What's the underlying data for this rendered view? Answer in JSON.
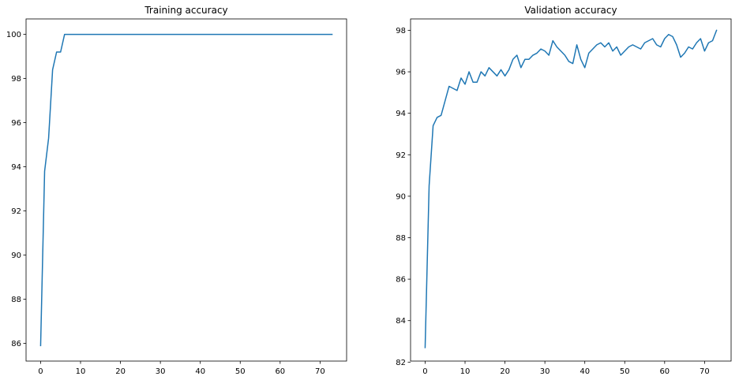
{
  "colors": {
    "series": "#1f77b4",
    "axes": "#000000",
    "background": "#ffffff"
  },
  "chart_data": [
    {
      "type": "line",
      "title": "Training accuracy",
      "xlabel": "",
      "ylabel": "",
      "xlim": [
        -3.65,
        76.65
      ],
      "ylim": [
        85.2,
        100.7
      ],
      "grid": false,
      "xticks": [
        0,
        10,
        20,
        30,
        40,
        50,
        60,
        70
      ],
      "yticks": [
        86,
        88,
        90,
        92,
        94,
        96,
        98,
        100
      ],
      "series": [
        {
          "x": [
            0,
            1,
            2,
            3,
            4,
            5,
            6,
            7,
            8,
            9,
            10,
            11,
            12,
            13,
            14,
            15,
            16,
            17,
            18,
            19,
            20,
            21,
            22,
            23,
            24,
            25,
            26,
            27,
            28,
            29,
            30,
            31,
            32,
            33,
            34,
            35,
            36,
            37,
            38,
            39,
            40,
            41,
            42,
            43,
            44,
            45,
            46,
            47,
            48,
            49,
            50,
            51,
            52,
            53,
            54,
            55,
            56,
            57,
            58,
            59,
            60,
            61,
            62,
            63,
            64,
            65,
            66,
            67,
            68,
            69,
            70,
            71,
            72,
            73
          ],
          "y": [
            85.9,
            93.8,
            95.3,
            98.4,
            99.2,
            99.2,
            100,
            100,
            100,
            100,
            100,
            100,
            100,
            100,
            100,
            100,
            100,
            100,
            100,
            100,
            100,
            100,
            100,
            100,
            100,
            100,
            100,
            100,
            100,
            100,
            100,
            100,
            100,
            100,
            100,
            100,
            100,
            100,
            100,
            100,
            100,
            100,
            100,
            100,
            100,
            100,
            100,
            100,
            100,
            100,
            100,
            100,
            100,
            100,
            100,
            100,
            100,
            100,
            100,
            100,
            100,
            100,
            100,
            100,
            100,
            100,
            100,
            100,
            100,
            100,
            100,
            100,
            100,
            100
          ]
        }
      ]
    },
    {
      "type": "line",
      "title": "Validation accuracy",
      "xlabel": "",
      "ylabel": "",
      "xlim": [
        -3.65,
        76.65
      ],
      "ylim": [
        82.05,
        98.55
      ],
      "grid": false,
      "xticks": [
        0,
        10,
        20,
        30,
        40,
        50,
        60,
        70
      ],
      "yticks": [
        82,
        84,
        86,
        88,
        90,
        92,
        94,
        96,
        98
      ],
      "series": [
        {
          "x": [
            0,
            1,
            2,
            3,
            4,
            5,
            6,
            7,
            8,
            9,
            10,
            11,
            12,
            13,
            14,
            15,
            16,
            17,
            18,
            19,
            20,
            21,
            22,
            23,
            24,
            25,
            26,
            27,
            28,
            29,
            30,
            31,
            32,
            33,
            34,
            35,
            36,
            37,
            38,
            39,
            40,
            41,
            42,
            43,
            44,
            45,
            46,
            47,
            48,
            49,
            50,
            51,
            52,
            53,
            54,
            55,
            56,
            57,
            58,
            59,
            60,
            61,
            62,
            63,
            64,
            65,
            66,
            67,
            68,
            69,
            70,
            71,
            72,
            73
          ],
          "y": [
            82.7,
            90.5,
            93.4,
            93.8,
            93.9,
            94.6,
            95.3,
            95.2,
            95.1,
            95.7,
            95.4,
            96.0,
            95.5,
            95.5,
            96.0,
            95.8,
            96.2,
            96.0,
            95.8,
            96.1,
            95.8,
            96.1,
            96.6,
            96.8,
            96.2,
            96.6,
            96.6,
            96.8,
            96.9,
            97.1,
            97.0,
            96.8,
            97.5,
            97.2,
            97.0,
            96.8,
            96.5,
            96.4,
            97.3,
            96.6,
            96.2,
            96.9,
            97.1,
            97.3,
            97.4,
            97.2,
            97.4,
            97.0,
            97.2,
            96.8,
            97.0,
            97.2,
            97.3,
            97.2,
            97.1,
            97.4,
            97.5,
            97.6,
            97.3,
            97.2,
            97.6,
            97.8,
            97.7,
            97.3,
            96.7,
            96.9,
            97.2,
            97.1,
            97.4,
            97.6,
            97.0,
            97.4,
            97.5,
            98.0
          ]
        }
      ]
    }
  ]
}
